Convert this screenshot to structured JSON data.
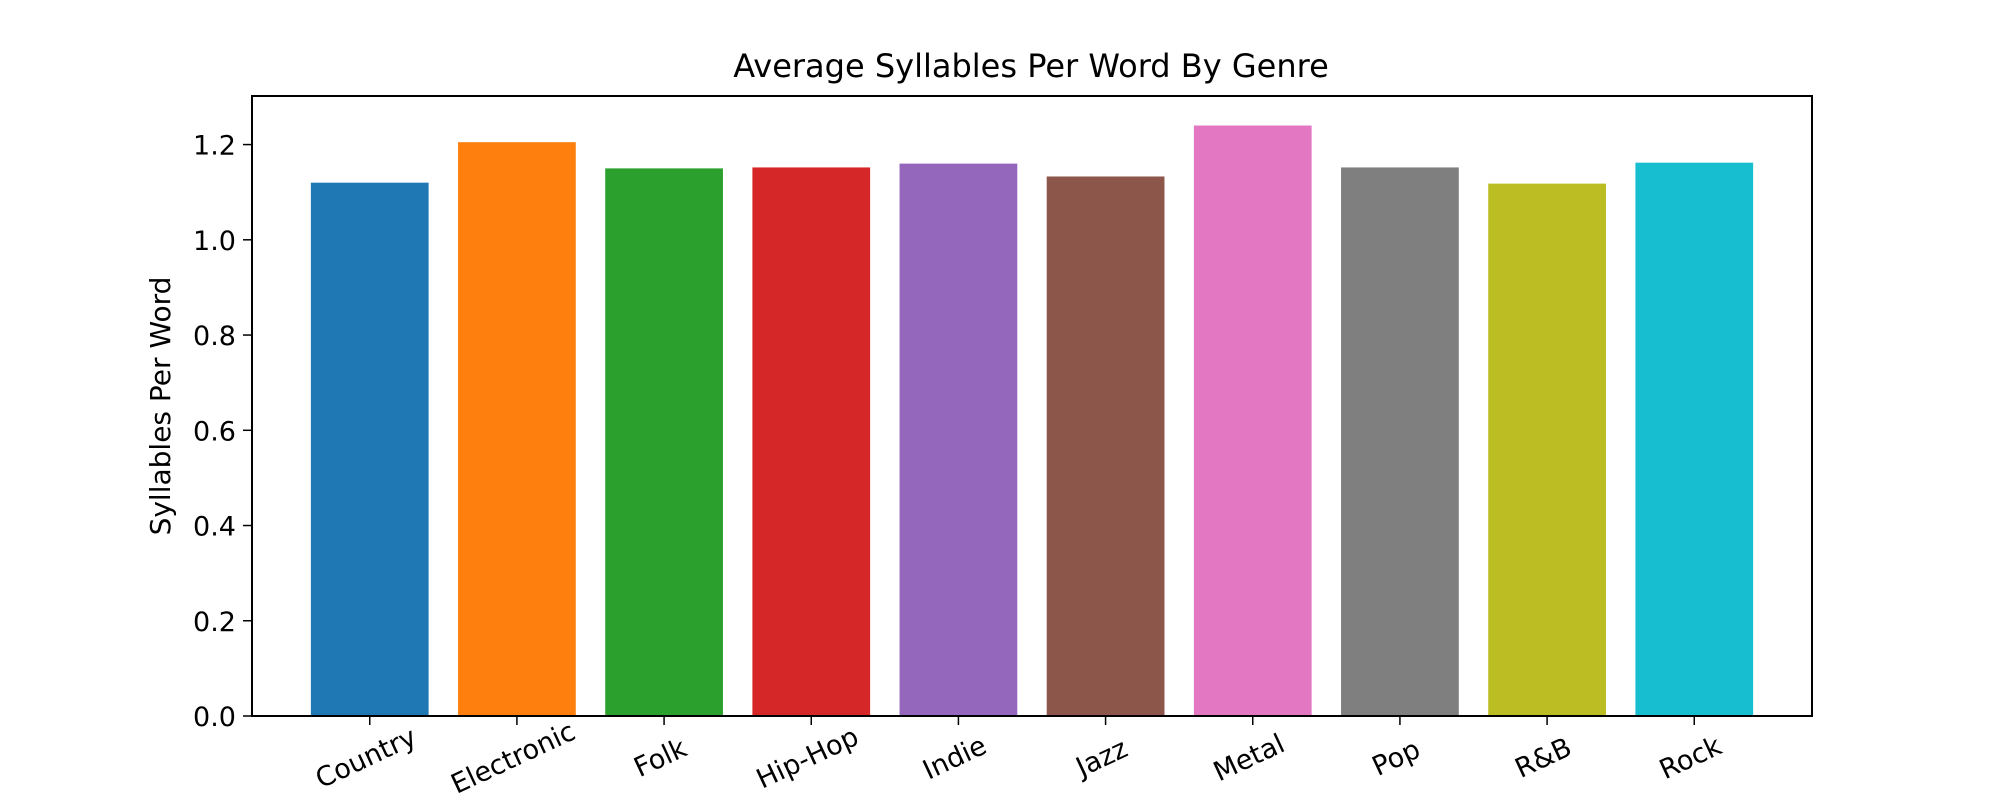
{
  "chart_data": {
    "type": "bar",
    "title": "Average Syllables Per Word By Genre",
    "xlabel": "",
    "ylabel": "Syllables Per Word",
    "categories": [
      "Country",
      "Electronic",
      "Folk",
      "Hip-Hop",
      "Indie",
      "Jazz",
      "Metal",
      "Pop",
      "R&B",
      "Rock"
    ],
    "values": [
      1.12,
      1.205,
      1.15,
      1.152,
      1.16,
      1.133,
      1.24,
      1.152,
      1.118,
      1.162
    ],
    "colors": [
      "#1f77b4",
      "#ff7f0e",
      "#2ca02c",
      "#d62728",
      "#9467bd",
      "#8c564b",
      "#e377c2",
      "#7f7f7f",
      "#bcbd22",
      "#17becf"
    ],
    "ylim": [
      0,
      1.302
    ],
    "yticks": [
      "0.0",
      "0.2",
      "0.4",
      "0.6",
      "0.8",
      "1.0",
      "1.2"
    ],
    "grid": false,
    "legend": "none"
  }
}
